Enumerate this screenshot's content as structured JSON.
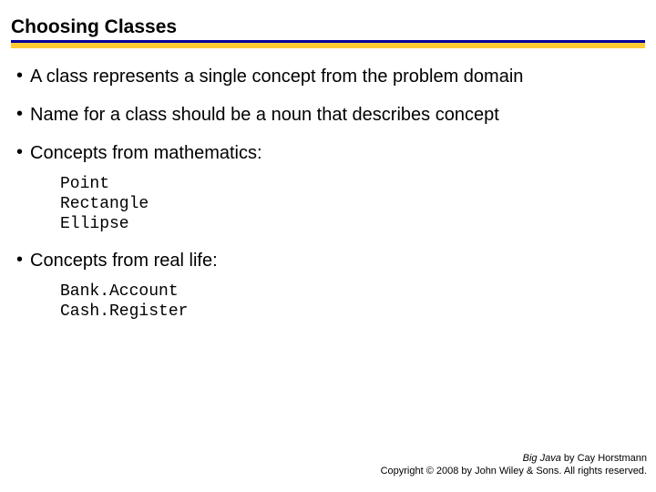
{
  "title": "Choosing Classes",
  "colors": {
    "underline_blue": "#000099",
    "underline_gold": "#ffcc33",
    "text": "#000000",
    "background": "#ffffff"
  },
  "typography": {
    "title_fontsize": 21,
    "title_weight": "bold",
    "body_fontsize": 20,
    "code_fontsize": 18,
    "footer_fontsize": 11,
    "code_font": "Courier New"
  },
  "bullets": {
    "b0": "A class represents a single concept from the problem domain",
    "b1": "Name for a class should be a noun that describes concept",
    "b2": "Concepts from mathematics:",
    "b3": "Concepts from real life:"
  },
  "code": {
    "math": "Point\nRectangle\nEllipse",
    "reallife": "Bank.Account\nCash.Register"
  },
  "footer": {
    "line1_book": "Big Java",
    "line1_rest": " by Cay Horstmann",
    "line2": "Copyright © 2008 by John Wiley & Sons.  All rights reserved."
  }
}
